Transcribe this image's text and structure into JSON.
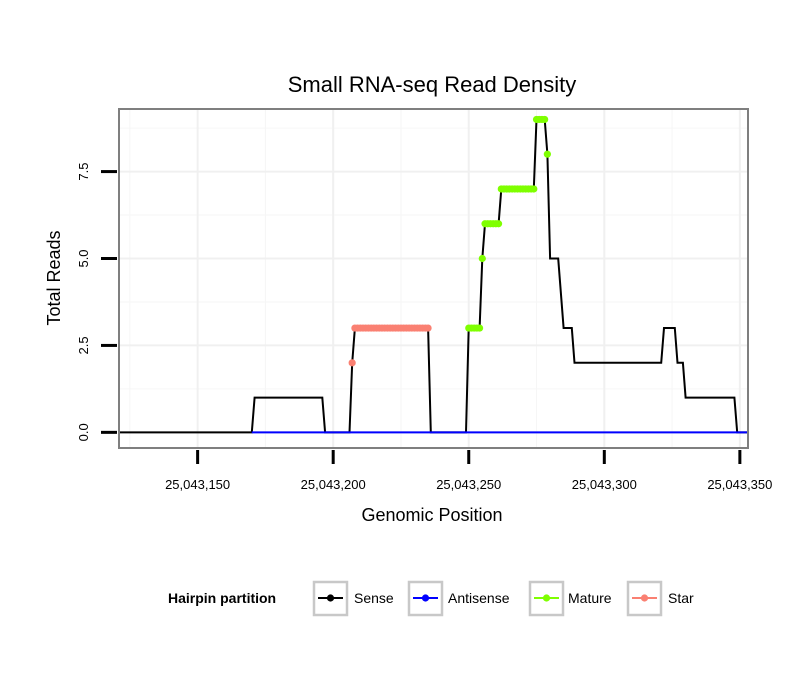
{
  "chart_data": {
    "type": "line",
    "title": "Small RNA-seq Read Density",
    "xlabel": "Genomic Position",
    "ylabel": "Total Reads",
    "xlim": [
      25043121,
      25043353
    ],
    "ylim": [
      -0.45,
      9.3
    ],
    "grid": true,
    "x_ticks": [
      25043150,
      25043200,
      25043250,
      25043300,
      25043350
    ],
    "x_tick_labels": [
      "25,043,150",
      "25,043,200",
      "25,043,250",
      "25,043,300",
      "25,043,350"
    ],
    "y_ticks": [
      0,
      2.5,
      5,
      7.5
    ],
    "y_tick_labels": [
      "0.0",
      "2.5",
      "5.0",
      "7.5"
    ],
    "legend": {
      "title": "Hairpin partition",
      "placement": "bottom",
      "entries": [
        {
          "name": "Sense",
          "color": "#000000"
        },
        {
          "name": "Antisense",
          "color": "#0000FF"
        },
        {
          "name": "Mature",
          "color": "#7FFF00"
        },
        {
          "name": "Star",
          "color": "#FA8072"
        }
      ]
    },
    "series": [
      {
        "name": "Sense",
        "color": "#000000",
        "points": [
          [
            25043121,
            0
          ],
          [
            25043170,
            0
          ],
          [
            25043171,
            1
          ],
          [
            25043196,
            1
          ],
          [
            25043197,
            0
          ],
          [
            25043206,
            0
          ],
          [
            25043207,
            2
          ],
          [
            25043208,
            3
          ],
          [
            25043235,
            3
          ],
          [
            25043236,
            0
          ],
          [
            25043249,
            0
          ],
          [
            25043250,
            3
          ],
          [
            25043254,
            3
          ],
          [
            25043255,
            5
          ],
          [
            25043256,
            6
          ],
          [
            25043261,
            6
          ],
          [
            25043262,
            7
          ],
          [
            25043274,
            7
          ],
          [
            25043275,
            9
          ],
          [
            25043278,
            9
          ],
          [
            25043279,
            8
          ],
          [
            25043280,
            5
          ],
          [
            25043283,
            5
          ],
          [
            25043285,
            3
          ],
          [
            25043288,
            3
          ],
          [
            25043289,
            2
          ],
          [
            25043321,
            2
          ],
          [
            25043322,
            3
          ],
          [
            25043326,
            3
          ],
          [
            25043327,
            2
          ],
          [
            25043329,
            2
          ],
          [
            25043330,
            1
          ],
          [
            25043348,
            1
          ],
          [
            25043349,
            0
          ],
          [
            25043353,
            0
          ]
        ]
      },
      {
        "name": "Antisense",
        "color": "#0000FF",
        "points": [
          [
            25043170,
            0
          ],
          [
            25043353,
            0
          ]
        ]
      },
      {
        "name": "Star",
        "color": "#FA8072",
        "point_x": [
          25043207,
          25043208,
          25043209,
          25043210,
          25043211,
          25043212,
          25043213,
          25043214,
          25043215,
          25043216,
          25043217,
          25043218,
          25043219,
          25043220,
          25043221,
          25043222,
          25043223,
          25043224,
          25043225,
          25043226,
          25043227,
          25043228,
          25043229,
          25043230,
          25043231,
          25043232,
          25043233,
          25043234,
          25043235
        ],
        "point_y": [
          2,
          3,
          3,
          3,
          3,
          3,
          3,
          3,
          3,
          3,
          3,
          3,
          3,
          3,
          3,
          3,
          3,
          3,
          3,
          3,
          3,
          3,
          3,
          3,
          3,
          3,
          3,
          3,
          3
        ]
      },
      {
        "name": "Mature",
        "color": "#7FFF00",
        "point_x": [
          25043250,
          25043251,
          25043252,
          25043253,
          25043254,
          25043255,
          25043256,
          25043257,
          25043258,
          25043259,
          25043260,
          25043261,
          25043262,
          25043263,
          25043264,
          25043265,
          25043266,
          25043267,
          25043268,
          25043269,
          25043270,
          25043271,
          25043272,
          25043273,
          25043274,
          25043275,
          25043276,
          25043277,
          25043278,
          25043279
        ],
        "point_y": [
          3,
          3,
          3,
          3,
          3,
          5,
          6,
          6,
          6,
          6,
          6,
          6,
          7,
          7,
          7,
          7,
          7,
          7,
          7,
          7,
          7,
          7,
          7,
          7,
          7,
          9,
          9,
          9,
          9,
          8
        ]
      }
    ]
  }
}
